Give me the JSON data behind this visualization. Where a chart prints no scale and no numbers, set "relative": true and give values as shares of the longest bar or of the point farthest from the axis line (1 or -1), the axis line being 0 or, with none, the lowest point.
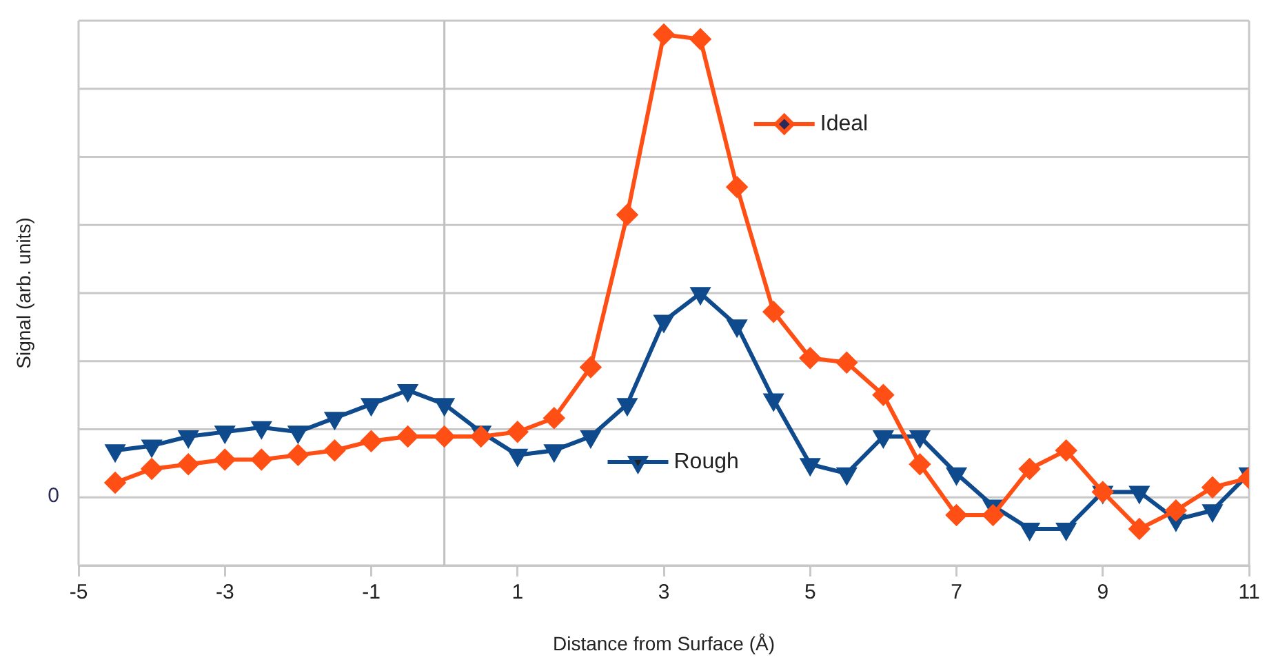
{
  "chart_data": {
    "type": "line",
    "xlabel": "Distance from Surface (Å)",
    "ylabel": "Signal (arb. units)",
    "relative": true,
    "x": [
      -4.5,
      -4,
      -3.5,
      -3,
      -2.5,
      -2,
      -1.5,
      -1,
      -0.5,
      0,
      0.5,
      1,
      1.5,
      2,
      2.5,
      3,
      3.5,
      4,
      4.5,
      5,
      5.5,
      6,
      6.5,
      7,
      7.5,
      8,
      8.5,
      9,
      9.5,
      10,
      10.5,
      11
    ],
    "series": [
      {
        "name": "Ideal",
        "color": "#ff4f14",
        "marker": "diamond",
        "values": [
          0.03,
          0.06,
          0.07,
          0.08,
          0.08,
          0.09,
          0.1,
          0.12,
          0.13,
          0.13,
          0.13,
          0.14,
          0.17,
          0.28,
          0.61,
          1,
          0.99,
          0.67,
          0.4,
          0.3,
          0.29,
          0.22,
          0.07,
          -0.04,
          -0.04,
          0.06,
          0.1,
          0.01,
          -0.07,
          -0.03,
          0.02,
          0.04
        ]
      },
      {
        "name": "Rough",
        "color": "#0e4a8c",
        "marker": "triangle",
        "values": [
          0.1,
          0.11,
          0.13,
          0.14,
          0.15,
          0.14,
          0.17,
          0.2,
          0.23,
          0.2,
          0.14,
          0.09,
          0.1,
          0.13,
          0.2,
          0.38,
          0.44,
          0.37,
          0.21,
          0.07,
          0.05,
          0.13,
          0.13,
          0.05,
          -0.02,
          -0.07,
          -0.07,
          0.01,
          0.01,
          -0.05,
          -0.03,
          0.05
        ]
      }
    ],
    "xlim": [
      -5,
      11
    ],
    "xticks": [
      -5,
      -3,
      -1,
      1,
      3,
      5,
      7,
      9,
      11
    ],
    "ref_lines": [
      {
        "axis": "x",
        "value": 0,
        "color": "#c0c0c0"
      }
    ],
    "annotations": [
      "0"
    ],
    "grid": "y",
    "legend": "bottom right",
    "line_style": "solid"
  }
}
